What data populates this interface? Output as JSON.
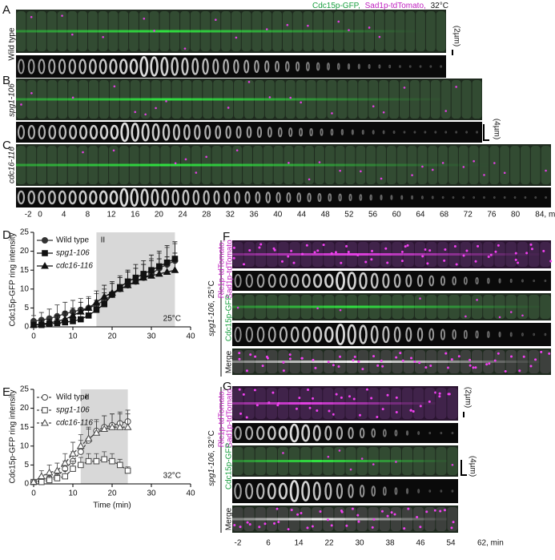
{
  "header": {
    "green": "Cdc15p-GFP,",
    "magenta": "Sad1p-tdTomato,",
    "temp": "32°C"
  },
  "panel_labels": {
    "A": "A",
    "B": "B",
    "C": "C",
    "D": "D",
    "E": "E",
    "F": "F",
    "G": "G"
  },
  "row_labels": {
    "A": "Wild type",
    "B": "spg1-106",
    "C": "cdc16-116"
  },
  "scale_bars": {
    "A": "(2µm)",
    "B": "(4µm)",
    "G_top": "(2µm)",
    "G_bottom": "(4µm)"
  },
  "time_ticks_top": [
    -2,
    0,
    4,
    8,
    12,
    16,
    20,
    24,
    28,
    32,
    36,
    40,
    44,
    48,
    52,
    56,
    60,
    64,
    68,
    72,
    76,
    80,
    {
      "value": 84,
      "label": "84, min"
    }
  ],
  "time_ticks_bottom": [
    -2,
    6,
    14,
    22,
    30,
    38,
    46,
    54,
    {
      "value": 62,
      "label": "62, min"
    }
  ],
  "F": {
    "strain": "spg1-106",
    "temp": ", 25°C"
  },
  "G": {
    "strain": "spg1-106",
    "temp": ", 32°C"
  },
  "channels": {
    "rlc": "Rlc1p-tdTomato,",
    "sad": "Sad1p-tdTomato",
    "cdc15": "Cdc15p-GFP",
    "merge": "Merge"
  },
  "chart_data": [
    {
      "type": "line",
      "ylabel": "Cdc15p-GFP ring intensity",
      "annotation": "25°C",
      "shaded_range": [
        16,
        36
      ],
      "shaded_label": "II",
      "line_style": "solid",
      "marker_fill": "filled",
      "xlim": [
        0,
        40
      ],
      "xticks": [
        0,
        10,
        20,
        30,
        40
      ],
      "ylim": [
        0,
        25
      ],
      "yticks": [
        0,
        5,
        10,
        15,
        20,
        25
      ],
      "x": [
        0,
        2,
        4,
        6,
        8,
        10,
        12,
        14,
        16,
        18,
        20,
        22,
        24,
        26,
        28,
        30,
        32,
        34,
        36
      ],
      "series": [
        {
          "name": "Wild type",
          "marker": "circle",
          "color": "#333333",
          "values": [
            1.5,
            1.8,
            2.2,
            2.8,
            3.5,
            4,
            4.5,
            5,
            5.8,
            7,
            8.5,
            10,
            11,
            12,
            13,
            14,
            15.5,
            16.5,
            17.5
          ],
          "errors": [
            1.5,
            2,
            2.5,
            3,
            3,
            3,
            3,
            3,
            3,
            3,
            3,
            3,
            3.5,
            3.5,
            3.5,
            4,
            4,
            4.5,
            4.5
          ]
        },
        {
          "name": "spg1-106",
          "marker": "square",
          "color": "#111111",
          "values": [
            0.5,
            0.5,
            0.8,
            1,
            1.2,
            1.5,
            2,
            3,
            4.5,
            6,
            8.5,
            10.5,
            12,
            13,
            14,
            15,
            16,
            17,
            18
          ],
          "errors": [
            0.5,
            0.5,
            0.8,
            1,
            1,
            1.5,
            1.5,
            2,
            2.5,
            3,
            3,
            3,
            3,
            3.5,
            3.5,
            4,
            4,
            4.5,
            4.5
          ]
        },
        {
          "name": "cdc16-116",
          "marker": "triangle",
          "color": "#111111",
          "values": [
            0.5,
            0.8,
            1,
            1.5,
            2,
            3,
            4,
            5,
            6.5,
            8,
            9,
            10,
            11,
            12,
            13,
            13.5,
            14,
            14.5,
            15
          ],
          "errors": [
            0.5,
            1,
            1,
            1.5,
            2,
            2,
            2.5,
            2.5,
            3,
            3,
            3,
            3,
            3.5,
            3.5,
            3.5,
            4,
            4,
            4,
            4.5
          ]
        }
      ]
    },
    {
      "type": "line",
      "ylabel": "Cdc15p-GFP ring intensity",
      "xlabel": "Time (min)",
      "annotation": "32°C",
      "shaded_range": [
        12,
        24
      ],
      "shaded_label": "II",
      "line_style": "dashed",
      "marker_fill": "open",
      "xlim": [
        0,
        40
      ],
      "xticks": [
        0,
        10,
        20,
        30,
        40
      ],
      "ylim": [
        0,
        25
      ],
      "yticks": [
        0,
        5,
        10,
        15,
        20,
        25
      ],
      "x": [
        0,
        2,
        4,
        6,
        8,
        10,
        12,
        14,
        16,
        18,
        20,
        22,
        24
      ],
      "series": [
        {
          "name": "Wild type",
          "marker": "circle",
          "color": "#444444",
          "values": [
            0.5,
            1,
            1.5,
            2,
            4,
            6,
            8.5,
            11.5,
            14,
            15,
            15.5,
            16,
            16.5
          ],
          "errors": [
            0.5,
            1,
            1,
            1.5,
            2,
            2.5,
            3,
            3,
            3,
            3,
            3,
            3,
            3
          ]
        },
        {
          "name": "spg1-106",
          "marker": "square",
          "color": "#444444",
          "values": [
            0.5,
            0.5,
            1,
            1.5,
            2,
            4,
            5,
            6,
            6,
            6.5,
            6,
            5,
            3.5
          ],
          "errors": [
            0.5,
            0.5,
            1,
            1,
            1.5,
            2,
            2,
            2,
            2,
            2,
            2,
            1.5,
            1
          ]
        },
        {
          "name": "cdc16-116",
          "marker": "triangle",
          "color": "#444444",
          "values": [
            0.5,
            2,
            3,
            3.5,
            5.5,
            8,
            10,
            12,
            13.5,
            14.5,
            15,
            15,
            15
          ],
          "errors": [
            0.5,
            1.5,
            2,
            2,
            2.5,
            3,
            3,
            3,
            3,
            3.5,
            3.5,
            3.5,
            3.5
          ]
        }
      ]
    }
  ]
}
